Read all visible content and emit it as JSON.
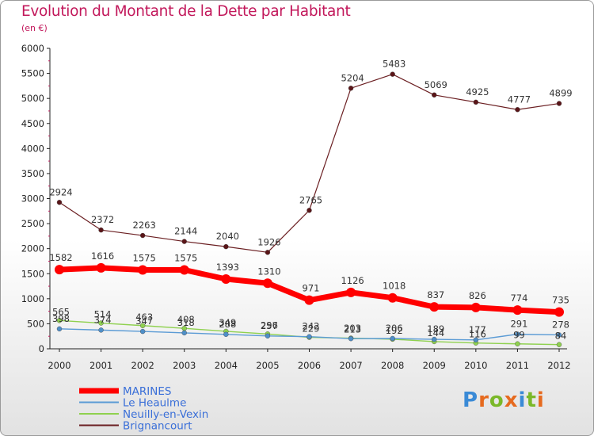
{
  "title": "Evolution du Montant de la Dette par Habitant",
  "subtitle": "(en €)",
  "logo": {
    "text": "Proxiti",
    "colors": [
      "#3a8ad6",
      "#e66a1f",
      "#7ab829",
      "#e66a1f",
      "#3a8ad6",
      "#7ab829",
      "#e66a1f"
    ]
  },
  "chart_data": {
    "type": "line",
    "x": [
      "2000",
      "2001",
      "2002",
      "2003",
      "2004",
      "2005",
      "2006",
      "2007",
      "2008",
      "2009",
      "2010",
      "2011",
      "2012"
    ],
    "ylim": [
      0,
      6000
    ],
    "yticks": [
      0,
      500,
      1000,
      1500,
      2000,
      2500,
      3000,
      3500,
      4000,
      4500,
      5000,
      5500,
      6000
    ],
    "grid": false,
    "legend_position": "bottom-left",
    "series": [
      {
        "name": "Brignancourt",
        "color": "#6b1f22",
        "values": [
          2924,
          2372,
          2263,
          2144,
          2040,
          1926,
          2765,
          5204,
          5483,
          5069,
          4925,
          4777,
          4899
        ]
      },
      {
        "name": "Neuilly-en-Vexin",
        "color": "#8fd14f",
        "values": [
          565,
          514,
          463,
          408,
          349,
          296,
          229,
          213,
          192,
          144,
          116,
          99,
          84
        ]
      },
      {
        "name": "Le Heaulme",
        "color": "#5b9bd5",
        "values": [
          398,
          374,
          347,
          318,
          288,
          257,
          242,
          203,
          206,
          189,
          177,
          291,
          278
        ]
      },
      {
        "name": "MARINES",
        "color": "#ff0000",
        "values": [
          1582,
          1616,
          1575,
          1575,
          1393,
          1310,
          971,
          1126,
          1018,
          837,
          826,
          774,
          735
        ]
      }
    ],
    "legend": [
      "MARINES",
      "Le Heaulme",
      "Neuilly-en-Vexin",
      "Brignancourt"
    ]
  }
}
